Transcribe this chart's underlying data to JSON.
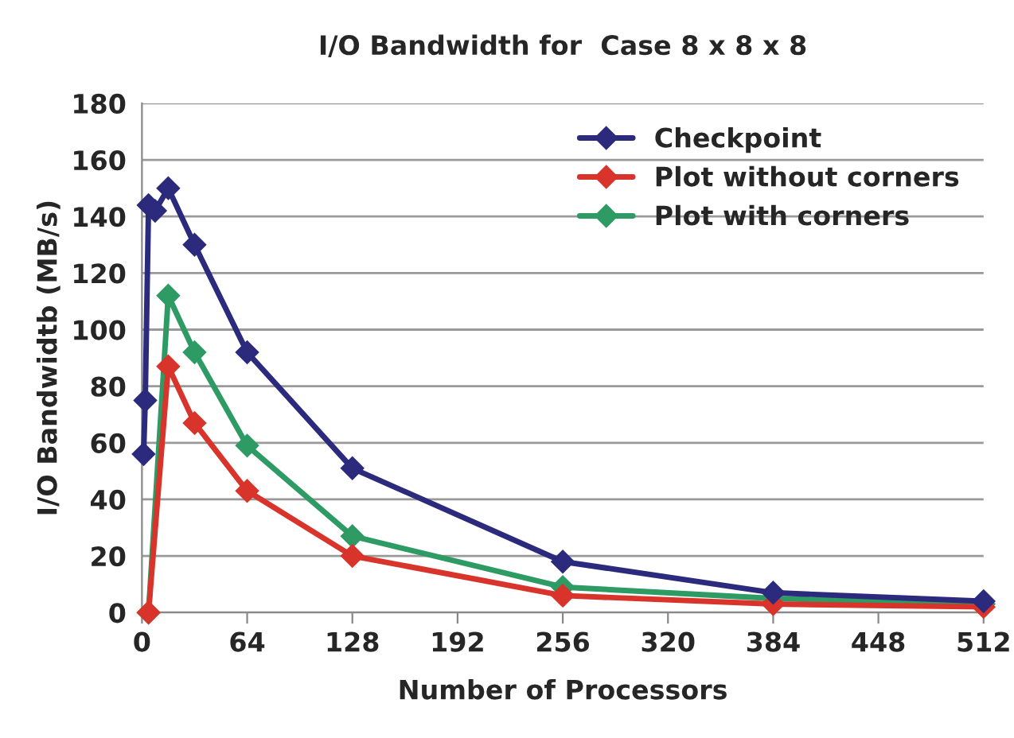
{
  "chart_data": {
    "type": "line",
    "title": "I/O Bandwidth for  Case 8 x 8 x 8",
    "xlabel": "Number of Processors",
    "ylabel": "I/O Bandwidtb (MB/s)",
    "series": [
      {
        "name": "Checkpoint",
        "color": "#2b2a7c",
        "x": [
          1,
          2,
          4,
          8,
          16,
          32,
          64,
          128,
          256,
          384,
          512
        ],
        "values": [
          56,
          75,
          144,
          142,
          150,
          130,
          92,
          51,
          18,
          7,
          4
        ]
      },
      {
        "name": "Plot without corners",
        "color": "#d9342b",
        "x": [
          4,
          16,
          32,
          64,
          128,
          256,
          384,
          512
        ],
        "values": [
          0,
          87,
          67,
          43,
          20,
          6,
          3,
          2
        ]
      },
      {
        "name": "Plot with corners",
        "color": "#2e9a64",
        "x": [
          4,
          16,
          32,
          64,
          128,
          256,
          384,
          512
        ],
        "values": [
          0,
          112,
          92,
          59,
          27,
          9,
          5,
          3
        ]
      }
    ],
    "xlim": [
      0,
      512
    ],
    "xticks": [
      0,
      64,
      128,
      192,
      256,
      320,
      384,
      448,
      512
    ],
    "ylim": [
      0,
      180
    ],
    "yticks": [
      0,
      20,
      40,
      60,
      80,
      100,
      120,
      140,
      160,
      180
    ],
    "grid": "y",
    "legend": "top right",
    "marker": "diamond",
    "line_style": "solid"
  }
}
